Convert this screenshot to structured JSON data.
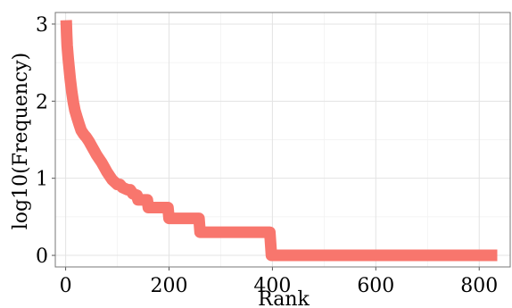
{
  "chart_data": {
    "type": "line",
    "title": "",
    "xlabel": "Rank",
    "ylabel": "log10(Frequency)",
    "xlim": [
      -20,
      860
    ],
    "ylim": [
      -0.15,
      3.15
    ],
    "x_ticks": [
      0,
      200,
      400,
      600,
      800
    ],
    "y_ticks": [
      0,
      1,
      2,
      3
    ],
    "grid": true,
    "series": [
      {
        "color": "#f8766d",
        "points": [
          [
            1,
            3.05
          ],
          [
            2,
            2.85
          ],
          [
            3,
            2.72
          ],
          [
            5,
            2.55
          ],
          [
            7,
            2.42
          ],
          [
            9,
            2.28
          ],
          [
            12,
            2.12
          ],
          [
            15,
            1.98
          ],
          [
            18,
            1.88
          ],
          [
            22,
            1.79
          ],
          [
            26,
            1.7
          ],
          [
            30,
            1.62
          ],
          [
            35,
            1.57
          ],
          [
            40,
            1.53
          ],
          [
            45,
            1.48
          ],
          [
            50,
            1.42
          ],
          [
            55,
            1.36
          ],
          [
            60,
            1.3
          ],
          [
            65,
            1.25
          ],
          [
            70,
            1.2
          ],
          [
            75,
            1.14
          ],
          [
            80,
            1.08
          ],
          [
            85,
            1.03
          ],
          [
            90,
            0.98
          ],
          [
            95,
            0.95
          ],
          [
            100,
            0.92
          ],
          [
            105,
            0.92
          ],
          [
            110,
            0.88
          ],
          [
            120,
            0.85
          ],
          [
            125,
            0.85
          ],
          [
            130,
            0.8
          ],
          [
            138,
            0.78
          ],
          [
            140,
            0.72
          ],
          [
            158,
            0.72
          ],
          [
            160,
            0.62
          ],
          [
            198,
            0.62
          ],
          [
            200,
            0.48
          ],
          [
            258,
            0.48
          ],
          [
            260,
            0.3
          ],
          [
            395,
            0.3
          ],
          [
            398,
            0.0
          ],
          [
            835,
            0.0
          ]
        ]
      }
    ]
  }
}
